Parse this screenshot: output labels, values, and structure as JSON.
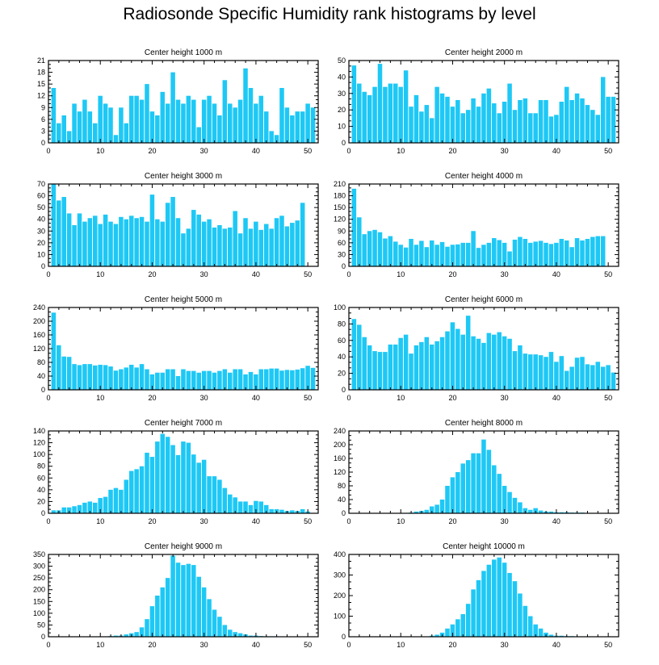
{
  "title": "Radiosonde Specific Humidity rank histograms by level",
  "colors": {
    "bar": "#1ec8f5",
    "axis": "#000000",
    "background": "#ffffff"
  },
  "chart_data": [
    {
      "type": "bar",
      "title": "Center height 1000 m",
      "xlim": [
        0,
        52
      ],
      "xticks": [
        0,
        10,
        20,
        30,
        40,
        50
      ],
      "ylim": [
        0,
        21
      ],
      "yticks": [
        0,
        3,
        6,
        9,
        12,
        15,
        18,
        21
      ],
      "values": [
        14,
        5,
        7,
        3,
        10,
        8,
        11,
        8,
        5,
        12,
        10,
        9,
        2,
        9,
        5,
        12,
        12,
        11,
        15,
        8,
        7,
        13,
        10,
        18,
        11,
        10,
        12,
        11,
        4,
        11,
        12,
        10,
        7,
        16,
        10,
        9,
        11,
        19,
        14,
        10,
        12,
        8,
        3,
        2,
        14,
        9,
        7,
        8,
        8,
        10,
        9
      ]
    },
    {
      "type": "bar",
      "title": "Center height 2000 m",
      "xlim": [
        0,
        52
      ],
      "xticks": [
        0,
        10,
        20,
        30,
        40,
        50
      ],
      "ylim": [
        0,
        50
      ],
      "yticks": [
        0,
        10,
        20,
        30,
        40,
        50
      ],
      "values": [
        47,
        36,
        31,
        29,
        34,
        48,
        34,
        36,
        36,
        34,
        44,
        22,
        29,
        19,
        23,
        15,
        34,
        30,
        28,
        22,
        26,
        18,
        20,
        27,
        22,
        30,
        33,
        24,
        18,
        25,
        36,
        20,
        26,
        27,
        18,
        18,
        26,
        26,
        16,
        17,
        25,
        34,
        26,
        30,
        27,
        23,
        20,
        17,
        40,
        28,
        28
      ]
    },
    {
      "type": "bar",
      "title": "Center height 3000 m",
      "xlim": [
        0,
        52
      ],
      "xticks": [
        0,
        10,
        20,
        30,
        40,
        50
      ],
      "ylim": [
        0,
        70
      ],
      "yticks": [
        0,
        10,
        20,
        30,
        40,
        50,
        60,
        70
      ],
      "values": [
        70,
        56,
        59,
        45,
        35,
        45,
        38,
        41,
        43,
        36,
        44,
        38,
        36,
        42,
        40,
        43,
        41,
        42,
        38,
        61,
        40,
        38,
        54,
        59,
        41,
        28,
        32,
        48,
        44,
        38,
        40,
        33,
        35,
        32,
        33,
        47,
        28,
        41,
        32,
        38,
        31,
        36,
        32,
        41,
        43,
        34,
        37,
        39,
        54,
        0,
        0
      ]
    },
    {
      "type": "bar",
      "title": "Center height 4000 m",
      "xlim": [
        0,
        52
      ],
      "xticks": [
        0,
        10,
        20,
        30,
        40,
        50
      ],
      "ylim": [
        0,
        210
      ],
      "yticks": [
        0,
        30,
        60,
        90,
        120,
        150,
        180,
        210
      ],
      "values": [
        198,
        125,
        82,
        90,
        93,
        87,
        71,
        77,
        63,
        55,
        48,
        70,
        55,
        65,
        49,
        66,
        55,
        62,
        50,
        55,
        56,
        60,
        60,
        90,
        47,
        55,
        60,
        72,
        67,
        60,
        38,
        68,
        75,
        70,
        60,
        63,
        65,
        60,
        57,
        60,
        70,
        66,
        49,
        72,
        66,
        70,
        75,
        77,
        77,
        0,
        0
      ]
    },
    {
      "type": "bar",
      "title": "Center height 5000 m",
      "xlim": [
        0,
        52
      ],
      "xticks": [
        0,
        10,
        20,
        30,
        40,
        50
      ],
      "ylim": [
        0,
        240
      ],
      "yticks": [
        0,
        40,
        80,
        120,
        160,
        200,
        240
      ],
      "values": [
        225,
        130,
        97,
        96,
        75,
        72,
        75,
        75,
        71,
        73,
        72,
        68,
        56,
        60,
        65,
        73,
        65,
        75,
        60,
        45,
        50,
        50,
        60,
        60,
        40,
        60,
        55,
        55,
        50,
        55,
        55,
        50,
        55,
        60,
        50,
        60,
        60,
        45,
        52,
        45,
        60,
        60,
        62,
        62,
        56,
        58,
        57,
        59,
        63,
        70,
        64
      ]
    },
    {
      "type": "bar",
      "title": "Center height 6000 m",
      "xlim": [
        0,
        52
      ],
      "xticks": [
        0,
        10,
        20,
        30,
        40,
        50
      ],
      "ylim": [
        0,
        100
      ],
      "yticks": [
        0,
        20,
        40,
        60,
        80,
        100
      ],
      "values": [
        86,
        79,
        64,
        54,
        47,
        46,
        46,
        55,
        55,
        63,
        67,
        44,
        54,
        58,
        64,
        55,
        59,
        64,
        71,
        82,
        74,
        67,
        90,
        65,
        62,
        57,
        69,
        67,
        70,
        65,
        62,
        47,
        54,
        44,
        43,
        43,
        42,
        40,
        46,
        34,
        41,
        23,
        28,
        39,
        40,
        31,
        30,
        34,
        28,
        30,
        21
      ]
    },
    {
      "type": "bar",
      "title": "Center height 7000 m",
      "xlim": [
        0,
        52
      ],
      "xticks": [
        0,
        10,
        20,
        30,
        40,
        50
      ],
      "ylim": [
        0,
        140
      ],
      "yticks": [
        0,
        20,
        40,
        60,
        80,
        100,
        120,
        140
      ],
      "values": [
        5,
        5,
        10,
        10,
        12,
        14,
        18,
        20,
        18,
        26,
        28,
        40,
        43,
        40,
        57,
        72,
        75,
        80,
        103,
        96,
        122,
        135,
        130,
        116,
        99,
        122,
        120,
        100,
        86,
        91,
        63,
        63,
        57,
        43,
        32,
        27,
        20,
        20,
        14,
        21,
        20,
        14,
        7,
        7,
        6,
        4,
        5,
        4,
        7,
        3,
        0
      ]
    },
    {
      "type": "bar",
      "title": "Center height 8000 m",
      "xlim": [
        0,
        52
      ],
      "xticks": [
        0,
        10,
        20,
        30,
        40,
        50
      ],
      "ylim": [
        0,
        240
      ],
      "yticks": [
        0,
        40,
        80,
        120,
        160,
        200,
        240
      ],
      "values": [
        0,
        0,
        0,
        0,
        0,
        0,
        0,
        0,
        0,
        0,
        0,
        2,
        5,
        7,
        10,
        20,
        25,
        40,
        80,
        105,
        120,
        145,
        155,
        175,
        175,
        215,
        185,
        140,
        115,
        80,
        62,
        45,
        32,
        15,
        10,
        15,
        8,
        5,
        5,
        3,
        3,
        3,
        2,
        2,
        2,
        0,
        0,
        0,
        0,
        0,
        0
      ]
    },
    {
      "type": "bar",
      "title": "Center height 9000 m",
      "xlim": [
        0,
        52
      ],
      "xticks": [
        0,
        10,
        20,
        30,
        40,
        50
      ],
      "ylim": [
        0,
        350
      ],
      "yticks": [
        0,
        50,
        100,
        150,
        200,
        250,
        300,
        350
      ],
      "values": [
        0,
        0,
        0,
        0,
        0,
        0,
        0,
        0,
        0,
        0,
        0,
        3,
        5,
        5,
        10,
        15,
        20,
        40,
        75,
        130,
        175,
        210,
        250,
        345,
        315,
        305,
        310,
        305,
        255,
        210,
        160,
        115,
        85,
        50,
        30,
        20,
        15,
        10,
        5,
        5,
        3,
        2,
        2,
        2,
        0,
        0,
        0,
        0,
        0,
        0,
        0
      ]
    },
    {
      "type": "bar",
      "title": "Center height 10000 m",
      "xlim": [
        0,
        52
      ],
      "xticks": [
        0,
        10,
        20,
        30,
        40,
        50
      ],
      "ylim": [
        0,
        400
      ],
      "yticks": [
        0,
        100,
        200,
        300,
        400
      ],
      "values": [
        0,
        0,
        0,
        0,
        0,
        0,
        0,
        0,
        0,
        0,
        0,
        0,
        0,
        0,
        0,
        5,
        10,
        20,
        40,
        60,
        85,
        110,
        160,
        230,
        275,
        320,
        350,
        375,
        385,
        360,
        310,
        270,
        210,
        150,
        100,
        60,
        40,
        20,
        10,
        5,
        5,
        3,
        3,
        2,
        2,
        0,
        0,
        0,
        0,
        0,
        0
      ]
    }
  ]
}
